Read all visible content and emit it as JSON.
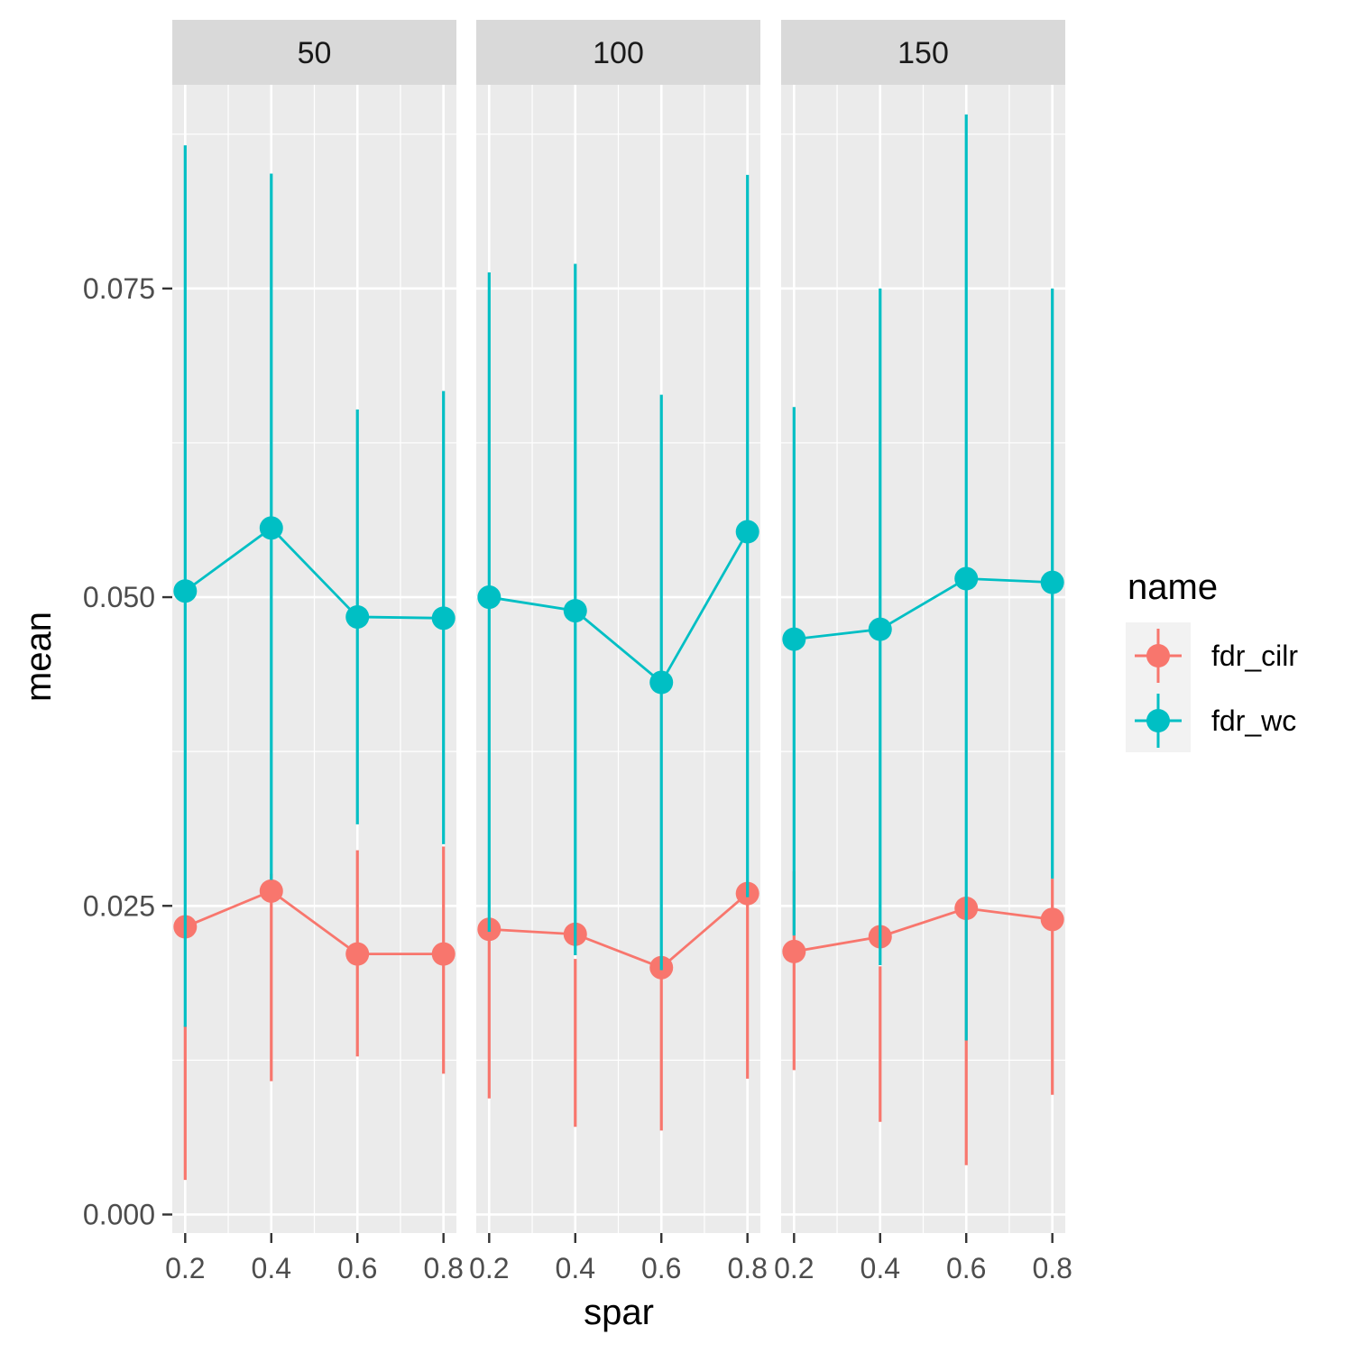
{
  "chart_data": {
    "type": "line",
    "facet_var_values": [
      "50",
      "100",
      "150"
    ],
    "x": [
      0.2,
      0.4,
      0.6,
      0.8
    ],
    "xlabel": "spar",
    "ylabel": "mean",
    "xlim": [
      0.17,
      0.83
    ],
    "ylim": [
      -0.0015,
      0.0915
    ],
    "y_ticks": [
      0.0,
      0.025,
      0.05,
      0.075
    ],
    "y_tick_labels": [
      "0.000",
      "0.025",
      "0.050",
      "0.075"
    ],
    "x_tick_labels": [
      "0.2",
      "0.4",
      "0.6",
      "0.8"
    ],
    "legend": {
      "title": "name",
      "position": "right"
    },
    "grid": true,
    "series": [
      {
        "name": "fdr_cilr",
        "color": "#F8766D",
        "panels": [
          {
            "mean": [
              0.0233,
              0.0262,
              0.0211,
              0.0211
            ],
            "lower": [
              0.0028,
              0.0108,
              0.0128,
              0.0114
            ],
            "upper": [
              0.0153,
              0.0276,
              0.0295,
              0.0298
            ]
          },
          {
            "mean": [
              0.0231,
              0.0227,
              0.02,
              0.026
            ],
            "lower": [
              0.0094,
              0.0071,
              0.0068,
              0.011
            ],
            "upper": [
              0.0228,
              0.0207,
              0.0202,
              0.0263
            ]
          },
          {
            "mean": [
              0.0213,
              0.0225,
              0.0248,
              0.0239
            ],
            "lower": [
              0.0117,
              0.0075,
              0.004,
              0.0097
            ],
            "upper": [
              0.0278,
              0.0201,
              0.025,
              0.0272
            ]
          }
        ]
      },
      {
        "name": "fdr_wc",
        "color": "#00BFC4",
        "panels": [
          {
            "mean": [
              0.0505,
              0.0556,
              0.0484,
              0.0483
            ],
            "lower": [
              0.0152,
              0.0271,
              0.0316,
              0.03
            ],
            "upper": [
              0.0866,
              0.0843,
              0.0652,
              0.0667
            ]
          },
          {
            "mean": [
              0.05,
              0.0489,
              0.0431,
              0.0553
            ],
            "lower": [
              0.0229,
              0.021,
              0.0198,
              0.0257
            ],
            "upper": [
              0.0763,
              0.077,
              0.0664,
              0.0842
            ]
          },
          {
            "mean": [
              0.0466,
              0.0474,
              0.0515,
              0.0512
            ],
            "lower": [
              0.0226,
              0.0202,
              0.0141,
              0.0272
            ],
            "upper": [
              0.0654,
              0.075,
              0.0891,
              0.075
            ]
          }
        ]
      }
    ]
  }
}
